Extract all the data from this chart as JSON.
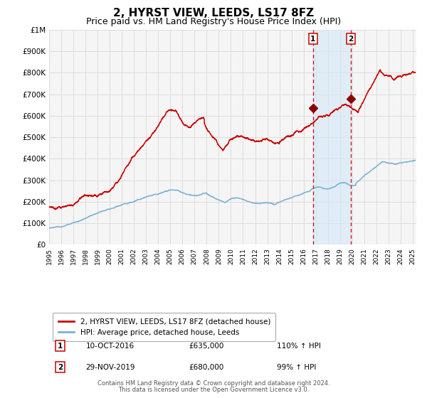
{
  "title": "2, HYRST VIEW, LEEDS, LS17 8FZ",
  "subtitle": "Price paid vs. HM Land Registry's House Price Index (HPI)",
  "title_fontsize": 11,
  "subtitle_fontsize": 9,
  "background_color": "#ffffff",
  "plot_bg_color": "#f5f5f5",
  "grid_color": "#dddddd",
  "xmin": 1995.0,
  "xmax": 2025.3,
  "ymin": 0,
  "ymax": 1000000,
  "yticks": [
    0,
    100000,
    200000,
    300000,
    400000,
    500000,
    600000,
    700000,
    800000,
    900000,
    1000000
  ],
  "ytick_labels": [
    "£0",
    "£100K",
    "£200K",
    "£300K",
    "£400K",
    "£500K",
    "£600K",
    "£700K",
    "£800K",
    "£900K",
    "£1M"
  ],
  "sale1_x": 2016.78,
  "sale1_y": 635000,
  "sale2_x": 2019.91,
  "sale2_y": 680000,
  "sale1_label": "1",
  "sale2_label": "2",
  "sale_marker_color": "#8b0000",
  "vline_color": "#cc0000",
  "shade_color": "#d6e8f7",
  "red_line_color": "#cc0000",
  "blue_line_color": "#7ab0d4",
  "legend_box_color": "#ffffff",
  "legend_border_color": "#aaaaaa",
  "annotation1_date": "10-OCT-2016",
  "annotation1_price": "£635,000",
  "annotation1_hpi": "110% ↑ HPI",
  "annotation2_date": "29-NOV-2019",
  "annotation2_price": "£680,000",
  "annotation2_hpi": "99% ↑ HPI",
  "footer1": "Contains HM Land Registry data © Crown copyright and database right 2024.",
  "footer2": "This data is licensed under the Open Government Licence v3.0.",
  "red_line_label": "2, HYRST VIEW, LEEDS, LS17 8FZ (detached house)",
  "blue_line_label": "HPI: Average price, detached house, Leeds"
}
